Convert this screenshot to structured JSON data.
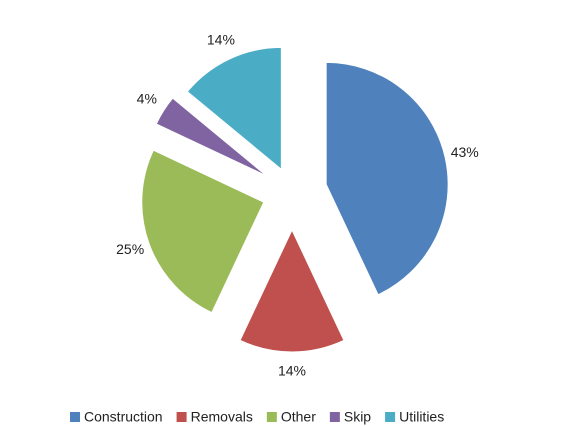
{
  "chart_data": {
    "type": "pie",
    "categories": [
      "Construction",
      "Removals",
      "Other",
      "Skip",
      "Utilities"
    ],
    "values": [
      43,
      14,
      25,
      4,
      14
    ],
    "value_labels": [
      "43%",
      "14%",
      "25%",
      "4%",
      "14%"
    ],
    "colors": [
      "#4f81bd",
      "#c0504d",
      "#9bbb59",
      "#8064a2",
      "#4bacc6"
    ],
    "legend": "bottom"
  }
}
